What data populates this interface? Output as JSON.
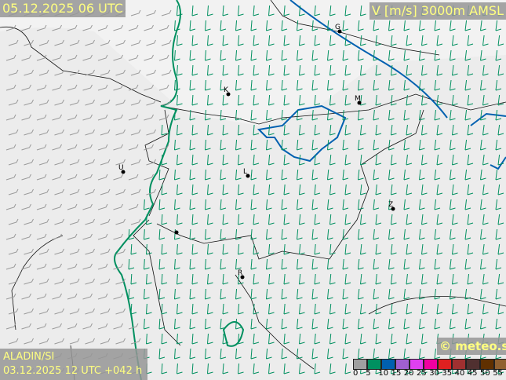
{
  "header": {
    "valid_time": "05.12.2025 06 UTC",
    "parameter": "V [m/s] 3000m AMSL"
  },
  "footer": {
    "model": "ALADIN/SI",
    "run": "03.12.2025 12 UTC +042 h",
    "copyright": "© meteo.si"
  },
  "legend": {
    "labels": [
      "0",
      "5",
      "10",
      "15",
      "20",
      "25",
      "30",
      "35",
      "40",
      "45",
      "50",
      "55"
    ],
    "colors": [
      "#a0a0a0",
      "#009060",
      "#0060b0",
      "#a060d0",
      "#e040f0",
      "#f000a0",
      "#e02020",
      "#a03030",
      "#503030",
      "#603000",
      "#906030",
      "#b09060"
    ]
  },
  "cities": [
    {
      "label": "G",
      "lon": 433,
      "lat": 40
    },
    {
      "label": "K",
      "lon": 291,
      "lat": 120
    },
    {
      "label": "M",
      "lon": 458,
      "lat": 131
    },
    {
      "label": "U",
      "lon": 157,
      "lat": 219
    },
    {
      "label": "L",
      "lon": 316,
      "lat": 224
    },
    {
      "label": "Z",
      "lon": 501,
      "lat": 266
    },
    {
      "label": "",
      "lon": 225,
      "lat": 296
    },
    {
      "label": "R",
      "lon": 309,
      "lat": 353
    }
  ],
  "isotach_colors": {
    "5": "#009060",
    "10": "#0060b0"
  }
}
